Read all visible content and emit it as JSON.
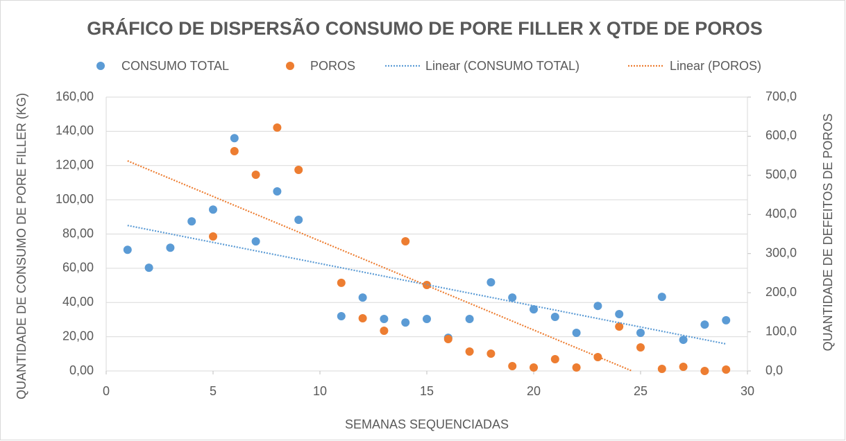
{
  "chart_data": {
    "type": "scatter",
    "title": "GRÁFICO DE DISPERSÃO CONSUMO DE PORE FILLER X QTDE DE POROS",
    "xlabel": "SEMANAS SEQUENCIADAS",
    "ylabel": "QUANTIDADE DE CONSUMO DE PORE FILLER (KG)",
    "y2label": "QUANTIDADE  DE DEFEITOS DE POROS",
    "xlim": [
      0,
      30
    ],
    "xticks": [
      0,
      5,
      10,
      15,
      20,
      25,
      30
    ],
    "ylim": [
      0,
      160
    ],
    "yticks": [
      {
        "value": 0,
        "label": "0,00"
      },
      {
        "value": 20,
        "label": "20,00"
      },
      {
        "value": 40,
        "label": "40,00"
      },
      {
        "value": 60,
        "label": "60,00"
      },
      {
        "value": 80,
        "label": "80,00"
      },
      {
        "value": 100,
        "label": "100,00"
      },
      {
        "value": 120,
        "label": "120,00"
      },
      {
        "value": 140,
        "label": "140,00"
      },
      {
        "value": 160,
        "label": "160,00"
      }
    ],
    "y2lim": [
      0,
      700
    ],
    "y2ticks": [
      {
        "value": 0,
        "label": "0,0"
      },
      {
        "value": 100,
        "label": "100,0"
      },
      {
        "value": 200,
        "label": "200,0"
      },
      {
        "value": 300,
        "label": "300,0"
      },
      {
        "value": 400,
        "label": "400,0"
      },
      {
        "value": 500,
        "label": "500,0"
      },
      {
        "value": 600,
        "label": "600,0"
      },
      {
        "value": 700,
        "label": "700,0"
      }
    ],
    "grid": true,
    "legend": "top",
    "series": [
      {
        "name": "CONSUMO TOTAL",
        "color": "#5b9bd5",
        "mode": "markers",
        "axis": "y",
        "x": [
          1,
          2,
          3,
          4,
          5,
          6,
          7,
          8,
          9,
          11,
          12,
          13,
          14,
          15,
          16,
          17,
          18,
          19,
          20,
          21,
          22,
          23,
          24,
          25,
          26,
          27,
          28,
          29
        ],
        "values": [
          70.8,
          60.3,
          72,
          87.4,
          94.3,
          136,
          75.7,
          104.9,
          88.3,
          32,
          42.9,
          30.4,
          28.3,
          30.4,
          19.4,
          30.4,
          51.8,
          42.9,
          36,
          31.6,
          22.3,
          38,
          33.2,
          22.3,
          43.3,
          18.2,
          27.1,
          29.6
        ]
      },
      {
        "name": "POROS",
        "color": "#ed7d31",
        "mode": "markers",
        "axis": "y2",
        "x": [
          5,
          6,
          7,
          8,
          9,
          11,
          12,
          13,
          14,
          15,
          16,
          17,
          18,
          19,
          20,
          21,
          22,
          23,
          24,
          25,
          26,
          27,
          28,
          29
        ],
        "values": [
          343.8,
          561.8,
          501.5,
          622,
          514,
          225.3,
          134.7,
          102.8,
          331.4,
          219.7,
          81.5,
          49.6,
          44.3,
          12.4,
          8.9,
          30.1,
          8.9,
          35.4,
          113.4,
          60.3,
          5.3,
          10.6,
          0,
          3.5
        ]
      },
      {
        "name": "Linear (CONSUMO TOTAL)",
        "color": "#5b9bd5",
        "mode": "trendline",
        "axis": "y",
        "x": [
          1,
          29
        ],
        "values": [
          85,
          15.8
        ]
      },
      {
        "name": "Linear (POROS)",
        "color": "#ed7d31",
        "mode": "trendline",
        "axis": "y2",
        "x": [
          1,
          24.6
        ],
        "values": [
          537,
          0
        ]
      }
    ]
  }
}
